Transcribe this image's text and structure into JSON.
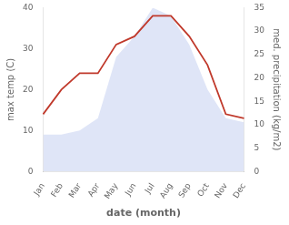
{
  "chart_data": {
    "type": "line",
    "categories": [
      "Jan",
      "Feb",
      "Mar",
      "Apr",
      "May",
      "Jun",
      "Jul",
      "Aug",
      "Sep",
      "Oct",
      "Nov",
      "Dec"
    ],
    "series": [
      {
        "type": "area",
        "color": "#c5cff0",
        "values": [
          9,
          9,
          10,
          13,
          28,
          33,
          40,
          38,
          31,
          20,
          13,
          12
        ]
      },
      {
        "type": "line",
        "color": "#c0392b",
        "values": [
          14,
          20,
          24,
          24,
          31,
          33,
          38,
          38,
          33,
          26,
          14,
          13
        ]
      }
    ],
    "x_label": "date (month)",
    "y_label": "max temp (C)",
    "y2_label": "med. precipitation (kg/m2)",
    "ylim": [
      0,
      40
    ],
    "yticks": [
      0,
      10,
      20,
      30,
      40
    ],
    "y2lim": [
      0,
      35
    ],
    "y2ticks": [
      0,
      5,
      10,
      15,
      20,
      25,
      30,
      35
    ],
    "grid": false
  }
}
